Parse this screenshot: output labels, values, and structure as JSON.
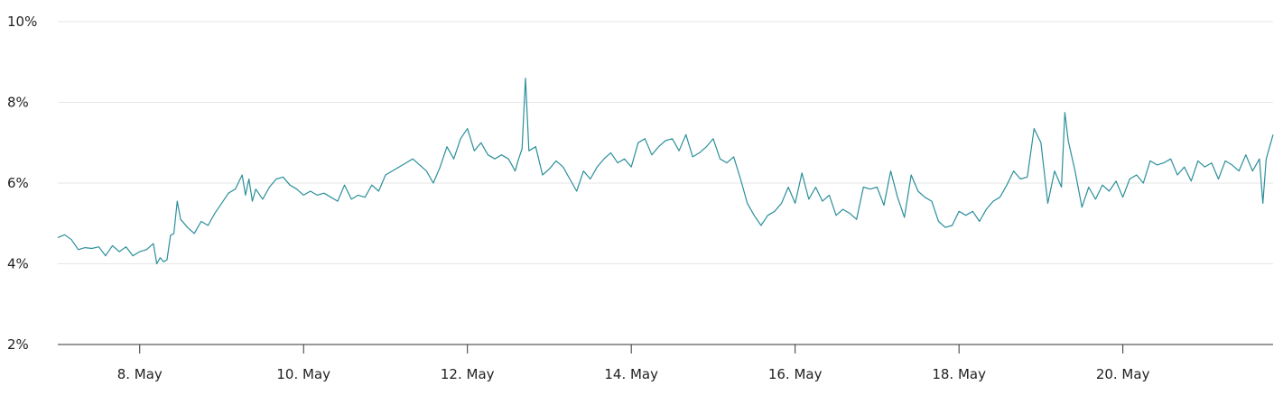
{
  "chart_data": {
    "type": "line",
    "title": "",
    "xlabel": "",
    "ylabel": "",
    "ylim": [
      2,
      10
    ],
    "xlim": [
      "2024-05-07T00:00",
      "2024-05-21T20:00"
    ],
    "y_ticks": [
      {
        "value": 2,
        "label": "2%"
      },
      {
        "value": 4,
        "label": "4%"
      },
      {
        "value": 6,
        "label": "6%"
      },
      {
        "value": 8,
        "label": "8%"
      },
      {
        "value": 10,
        "label": "10%"
      }
    ],
    "x_ticks": [
      {
        "value": "2024-05-08T00:00",
        "label": "8. May"
      },
      {
        "value": "2024-05-10T00:00",
        "label": "10. May"
      },
      {
        "value": "2024-05-12T00:00",
        "label": "12. May"
      },
      {
        "value": "2024-05-14T00:00",
        "label": "14. May"
      },
      {
        "value": "2024-05-16T00:00",
        "label": "16. May"
      },
      {
        "value": "2024-05-18T00:00",
        "label": "18. May"
      },
      {
        "value": "2024-05-20T00:00",
        "label": "20. May"
      }
    ],
    "grid": true,
    "legend": "none",
    "series": [
      {
        "color": "#2b8f9a",
        "points": [
          {
            "x": "2024-05-07T00:00",
            "y": 4.65
          },
          {
            "x": "2024-05-07T02:00",
            "y": 4.72
          },
          {
            "x": "2024-05-07T04:00",
            "y": 4.6
          },
          {
            "x": "2024-05-07T06:00",
            "y": 4.35
          },
          {
            "x": "2024-05-07T08:00",
            "y": 4.4
          },
          {
            "x": "2024-05-07T10:00",
            "y": 4.38
          },
          {
            "x": "2024-05-07T12:00",
            "y": 4.42
          },
          {
            "x": "2024-05-07T14:00",
            "y": 4.2
          },
          {
            "x": "2024-05-07T16:00",
            "y": 4.45
          },
          {
            "x": "2024-05-07T18:00",
            "y": 4.3
          },
          {
            "x": "2024-05-07T20:00",
            "y": 4.42
          },
          {
            "x": "2024-05-07T22:00",
            "y": 4.2
          },
          {
            "x": "2024-05-08T00:00",
            "y": 4.3
          },
          {
            "x": "2024-05-08T02:00",
            "y": 4.35
          },
          {
            "x": "2024-05-08T04:00",
            "y": 4.5
          },
          {
            "x": "2024-05-08T05:00",
            "y": 4.0
          },
          {
            "x": "2024-05-08T06:00",
            "y": 4.15
          },
          {
            "x": "2024-05-08T07:00",
            "y": 4.05
          },
          {
            "x": "2024-05-08T08:00",
            "y": 4.1
          },
          {
            "x": "2024-05-08T09:00",
            "y": 4.7
          },
          {
            "x": "2024-05-08T10:00",
            "y": 4.75
          },
          {
            "x": "2024-05-08T11:00",
            "y": 5.55
          },
          {
            "x": "2024-05-08T12:00",
            "y": 5.1
          },
          {
            "x": "2024-05-08T14:00",
            "y": 4.9
          },
          {
            "x": "2024-05-08T16:00",
            "y": 4.75
          },
          {
            "x": "2024-05-08T18:00",
            "y": 5.05
          },
          {
            "x": "2024-05-08T20:00",
            "y": 4.95
          },
          {
            "x": "2024-05-08T22:00",
            "y": 5.25
          },
          {
            "x": "2024-05-09T00:00",
            "y": 5.5
          },
          {
            "x": "2024-05-09T02:00",
            "y": 5.75
          },
          {
            "x": "2024-05-09T04:00",
            "y": 5.85
          },
          {
            "x": "2024-05-09T06:00",
            "y": 6.2
          },
          {
            "x": "2024-05-09T07:00",
            "y": 5.7
          },
          {
            "x": "2024-05-09T08:00",
            "y": 6.1
          },
          {
            "x": "2024-05-09T09:00",
            "y": 5.55
          },
          {
            "x": "2024-05-09T10:00",
            "y": 5.85
          },
          {
            "x": "2024-05-09T12:00",
            "y": 5.6
          },
          {
            "x": "2024-05-09T14:00",
            "y": 5.9
          },
          {
            "x": "2024-05-09T16:00",
            "y": 6.1
          },
          {
            "x": "2024-05-09T18:00",
            "y": 6.15
          },
          {
            "x": "2024-05-09T20:00",
            "y": 5.95
          },
          {
            "x": "2024-05-09T22:00",
            "y": 5.85
          },
          {
            "x": "2024-05-10T00:00",
            "y": 5.7
          },
          {
            "x": "2024-05-10T02:00",
            "y": 5.8
          },
          {
            "x": "2024-05-10T04:00",
            "y": 5.7
          },
          {
            "x": "2024-05-10T06:00",
            "y": 5.75
          },
          {
            "x": "2024-05-10T08:00",
            "y": 5.65
          },
          {
            "x": "2024-05-10T10:00",
            "y": 5.55
          },
          {
            "x": "2024-05-10T12:00",
            "y": 5.95
          },
          {
            "x": "2024-05-10T14:00",
            "y": 5.6
          },
          {
            "x": "2024-05-10T16:00",
            "y": 5.7
          },
          {
            "x": "2024-05-10T18:00",
            "y": 5.65
          },
          {
            "x": "2024-05-10T20:00",
            "y": 5.95
          },
          {
            "x": "2024-05-10T22:00",
            "y": 5.8
          },
          {
            "x": "2024-05-11T00:00",
            "y": 6.2
          },
          {
            "x": "2024-05-11T02:00",
            "y": 6.3
          },
          {
            "x": "2024-05-11T04:00",
            "y": 6.4
          },
          {
            "x": "2024-05-11T06:00",
            "y": 6.5
          },
          {
            "x": "2024-05-11T08:00",
            "y": 6.6
          },
          {
            "x": "2024-05-11T10:00",
            "y": 6.45
          },
          {
            "x": "2024-05-11T12:00",
            "y": 6.3
          },
          {
            "x": "2024-05-11T14:00",
            "y": 6.0
          },
          {
            "x": "2024-05-11T16:00",
            "y": 6.4
          },
          {
            "x": "2024-05-11T18:00",
            "y": 6.9
          },
          {
            "x": "2024-05-11T20:00",
            "y": 6.6
          },
          {
            "x": "2024-05-11T22:00",
            "y": 7.1
          },
          {
            "x": "2024-05-12T00:00",
            "y": 7.35
          },
          {
            "x": "2024-05-12T02:00",
            "y": 6.8
          },
          {
            "x": "2024-05-12T04:00",
            "y": 7.0
          },
          {
            "x": "2024-05-12T06:00",
            "y": 6.7
          },
          {
            "x": "2024-05-12T08:00",
            "y": 6.6
          },
          {
            "x": "2024-05-12T10:00",
            "y": 6.7
          },
          {
            "x": "2024-05-12T12:00",
            "y": 6.6
          },
          {
            "x": "2024-05-12T14:00",
            "y": 6.3
          },
          {
            "x": "2024-05-12T15:00",
            "y": 6.6
          },
          {
            "x": "2024-05-12T16:00",
            "y": 6.85
          },
          {
            "x": "2024-05-12T17:00",
            "y": 8.6
          },
          {
            "x": "2024-05-12T18:00",
            "y": 6.8
          },
          {
            "x": "2024-05-12T20:00",
            "y": 6.9
          },
          {
            "x": "2024-05-12T22:00",
            "y": 6.2
          },
          {
            "x": "2024-05-13T00:00",
            "y": 6.35
          },
          {
            "x": "2024-05-13T02:00",
            "y": 6.55
          },
          {
            "x": "2024-05-13T04:00",
            "y": 6.4
          },
          {
            "x": "2024-05-13T06:00",
            "y": 6.1
          },
          {
            "x": "2024-05-13T08:00",
            "y": 5.8
          },
          {
            "x": "2024-05-13T10:00",
            "y": 6.3
          },
          {
            "x": "2024-05-13T12:00",
            "y": 6.1
          },
          {
            "x": "2024-05-13T14:00",
            "y": 6.4
          },
          {
            "x": "2024-05-13T16:00",
            "y": 6.6
          },
          {
            "x": "2024-05-13T18:00",
            "y": 6.75
          },
          {
            "x": "2024-05-13T20:00",
            "y": 6.5
          },
          {
            "x": "2024-05-13T22:00",
            "y": 6.6
          },
          {
            "x": "2024-05-14T00:00",
            "y": 6.4
          },
          {
            "x": "2024-05-14T02:00",
            "y": 7.0
          },
          {
            "x": "2024-05-14T04:00",
            "y": 7.1
          },
          {
            "x": "2024-05-14T06:00",
            "y": 6.7
          },
          {
            "x": "2024-05-14T08:00",
            "y": 6.9
          },
          {
            "x": "2024-05-14T10:00",
            "y": 7.05
          },
          {
            "x": "2024-05-14T12:00",
            "y": 7.1
          },
          {
            "x": "2024-05-14T14:00",
            "y": 6.8
          },
          {
            "x": "2024-05-14T16:00",
            "y": 7.2
          },
          {
            "x": "2024-05-14T18:00",
            "y": 6.65
          },
          {
            "x": "2024-05-14T20:00",
            "y": 6.75
          },
          {
            "x": "2024-05-14T22:00",
            "y": 6.9
          },
          {
            "x": "2024-05-15T00:00",
            "y": 7.1
          },
          {
            "x": "2024-05-15T02:00",
            "y": 6.6
          },
          {
            "x": "2024-05-15T04:00",
            "y": 6.5
          },
          {
            "x": "2024-05-15T06:00",
            "y": 6.65
          },
          {
            "x": "2024-05-15T08:00",
            "y": 6.1
          },
          {
            "x": "2024-05-15T10:00",
            "y": 5.5
          },
          {
            "x": "2024-05-15T12:00",
            "y": 5.2
          },
          {
            "x": "2024-05-15T14:00",
            "y": 4.95
          },
          {
            "x": "2024-05-15T16:00",
            "y": 5.2
          },
          {
            "x": "2024-05-15T18:00",
            "y": 5.3
          },
          {
            "x": "2024-05-15T20:00",
            "y": 5.5
          },
          {
            "x": "2024-05-15T22:00",
            "y": 5.9
          },
          {
            "x": "2024-05-16T00:00",
            "y": 5.5
          },
          {
            "x": "2024-05-16T02:00",
            "y": 6.25
          },
          {
            "x": "2024-05-16T04:00",
            "y": 5.6
          },
          {
            "x": "2024-05-16T06:00",
            "y": 5.9
          },
          {
            "x": "2024-05-16T08:00",
            "y": 5.55
          },
          {
            "x": "2024-05-16T10:00",
            "y": 5.7
          },
          {
            "x": "2024-05-16T12:00",
            "y": 5.2
          },
          {
            "x": "2024-05-16T14:00",
            "y": 5.35
          },
          {
            "x": "2024-05-16T16:00",
            "y": 5.25
          },
          {
            "x": "2024-05-16T18:00",
            "y": 5.1
          },
          {
            "x": "2024-05-16T20:00",
            "y": 5.9
          },
          {
            "x": "2024-05-16T22:00",
            "y": 5.85
          },
          {
            "x": "2024-05-17T00:00",
            "y": 5.9
          },
          {
            "x": "2024-05-17T02:00",
            "y": 5.45
          },
          {
            "x": "2024-05-17T04:00",
            "y": 6.3
          },
          {
            "x": "2024-05-17T06:00",
            "y": 5.65
          },
          {
            "x": "2024-05-17T08:00",
            "y": 5.15
          },
          {
            "x": "2024-05-17T10:00",
            "y": 6.2
          },
          {
            "x": "2024-05-17T12:00",
            "y": 5.8
          },
          {
            "x": "2024-05-17T14:00",
            "y": 5.65
          },
          {
            "x": "2024-05-17T16:00",
            "y": 5.55
          },
          {
            "x": "2024-05-17T18:00",
            "y": 5.05
          },
          {
            "x": "2024-05-17T20:00",
            "y": 4.9
          },
          {
            "x": "2024-05-17T22:00",
            "y": 4.95
          },
          {
            "x": "2024-05-18T00:00",
            "y": 5.3
          },
          {
            "x": "2024-05-18T02:00",
            "y": 5.2
          },
          {
            "x": "2024-05-18T04:00",
            "y": 5.3
          },
          {
            "x": "2024-05-18T06:00",
            "y": 5.05
          },
          {
            "x": "2024-05-18T08:00",
            "y": 5.35
          },
          {
            "x": "2024-05-18T10:00",
            "y": 5.55
          },
          {
            "x": "2024-05-18T12:00",
            "y": 5.65
          },
          {
            "x": "2024-05-18T14:00",
            "y": 5.95
          },
          {
            "x": "2024-05-18T16:00",
            "y": 6.3
          },
          {
            "x": "2024-05-18T18:00",
            "y": 6.1
          },
          {
            "x": "2024-05-18T20:00",
            "y": 6.15
          },
          {
            "x": "2024-05-18T22:00",
            "y": 7.35
          },
          {
            "x": "2024-05-19T00:00",
            "y": 7.0
          },
          {
            "x": "2024-05-19T02:00",
            "y": 5.5
          },
          {
            "x": "2024-05-19T04:00",
            "y": 6.3
          },
          {
            "x": "2024-05-19T06:00",
            "y": 5.9
          },
          {
            "x": "2024-05-19T07:00",
            "y": 7.75
          },
          {
            "x": "2024-05-19T08:00",
            "y": 7.05
          },
          {
            "x": "2024-05-19T10:00",
            "y": 6.3
          },
          {
            "x": "2024-05-19T12:00",
            "y": 5.4
          },
          {
            "x": "2024-05-19T14:00",
            "y": 5.9
          },
          {
            "x": "2024-05-19T16:00",
            "y": 5.6
          },
          {
            "x": "2024-05-19T18:00",
            "y": 5.95
          },
          {
            "x": "2024-05-19T20:00",
            "y": 5.8
          },
          {
            "x": "2024-05-19T22:00",
            "y": 6.05
          },
          {
            "x": "2024-05-20T00:00",
            "y": 5.65
          },
          {
            "x": "2024-05-20T02:00",
            "y": 6.1
          },
          {
            "x": "2024-05-20T04:00",
            "y": 6.2
          },
          {
            "x": "2024-05-20T06:00",
            "y": 6.0
          },
          {
            "x": "2024-05-20T08:00",
            "y": 6.55
          },
          {
            "x": "2024-05-20T10:00",
            "y": 6.45
          },
          {
            "x": "2024-05-20T12:00",
            "y": 6.5
          },
          {
            "x": "2024-05-20T14:00",
            "y": 6.6
          },
          {
            "x": "2024-05-20T16:00",
            "y": 6.2
          },
          {
            "x": "2024-05-20T18:00",
            "y": 6.4
          },
          {
            "x": "2024-05-20T20:00",
            "y": 6.05
          },
          {
            "x": "2024-05-20T22:00",
            "y": 6.55
          },
          {
            "x": "2024-05-21T00:00",
            "y": 6.4
          },
          {
            "x": "2024-05-21T02:00",
            "y": 6.5
          },
          {
            "x": "2024-05-21T04:00",
            "y": 6.1
          },
          {
            "x": "2024-05-21T06:00",
            "y": 6.55
          },
          {
            "x": "2024-05-21T08:00",
            "y": 6.45
          },
          {
            "x": "2024-05-21T10:00",
            "y": 6.3
          },
          {
            "x": "2024-05-21T12:00",
            "y": 6.7
          },
          {
            "x": "2024-05-21T14:00",
            "y": 6.3
          },
          {
            "x": "2024-05-21T16:00",
            "y": 6.6
          },
          {
            "x": "2024-05-21T17:00",
            "y": 5.5
          },
          {
            "x": "2024-05-21T18:00",
            "y": 6.6
          },
          {
            "x": "2024-05-21T20:00",
            "y": 7.2
          }
        ]
      }
    ]
  }
}
